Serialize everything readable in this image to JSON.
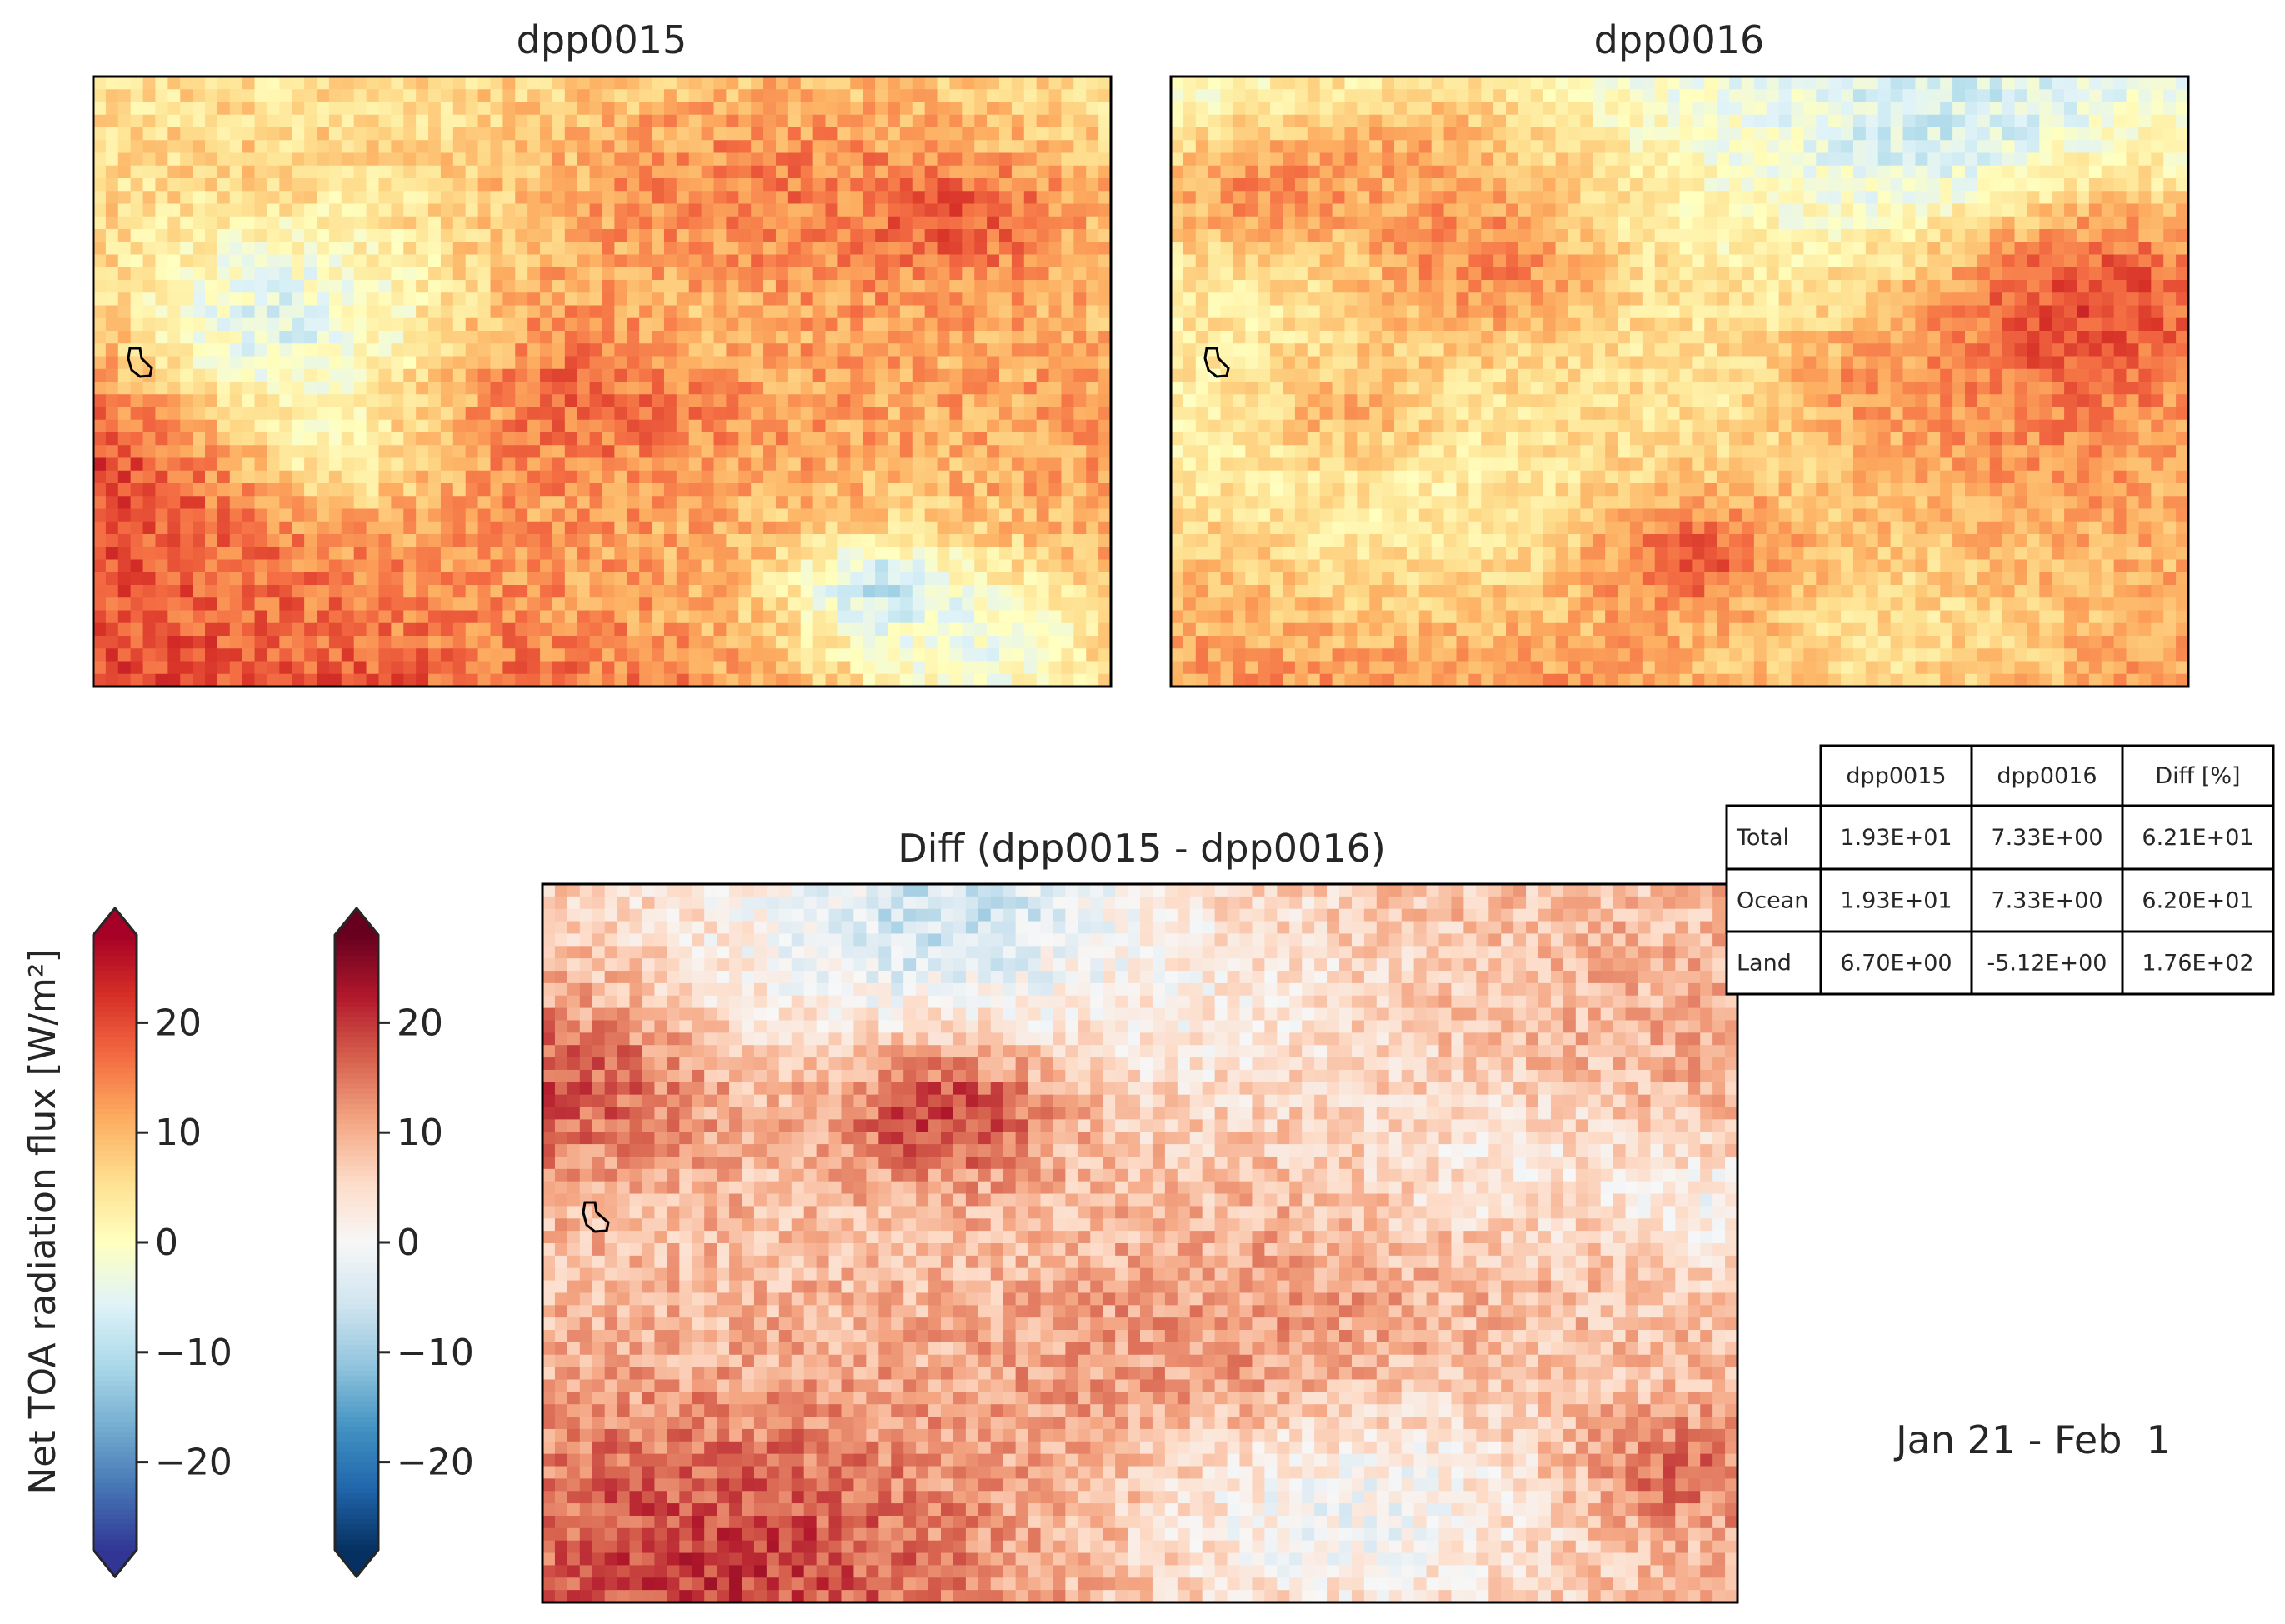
{
  "figure": {
    "date_range": "Jan 21 - Feb  1"
  },
  "chart_data": [
    {
      "type": "heatmap",
      "title": "dpp0015",
      "colormap": "RdYlBu_r",
      "value_range": [
        -27,
        27
      ],
      "grid_size": [
        48,
        82
      ],
      "pattern": "mostly warm values, dark red in southern half, scattered pale yellow patches in the north-center",
      "base_level": 12,
      "north_south_gradient": 14,
      "noise_amplitude": 9,
      "seed": 15,
      "island_outline": true
    },
    {
      "type": "heatmap",
      "title": "dpp0016",
      "colormap": "RdYlBu_r",
      "value_range": [
        -27,
        27
      ],
      "grid_size": [
        48,
        82
      ],
      "pattern": "pale yellow and light blue north, orange-red south, dark blue patch left of center",
      "base_level": 5,
      "north_south_gradient": 16,
      "noise_amplitude": 8,
      "seed": 16,
      "island_outline": true
    },
    {
      "type": "heatmap",
      "title": "Diff (dpp0015 - dpp0016)",
      "colormap": "RdBu_r",
      "value_range": [
        -27,
        27
      ],
      "grid_size": [
        58,
        96
      ],
      "pattern": "mostly pale to medium red, dark red patch center-left and center-right, light blue specks",
      "base_level": 8,
      "north_south_gradient": 2,
      "noise_amplitude": 9,
      "seed": 42,
      "island_outline": true
    },
    {
      "type": "colorbar",
      "ylabel": "Net TOA radiation flux [W/m²]",
      "ticks": [
        -20,
        -10,
        0,
        10,
        20
      ],
      "tick_labels": [
        "−20",
        "−10",
        "0",
        "10",
        "20"
      ],
      "range": [
        -28,
        28
      ],
      "colormap": "RdYlBu_r",
      "extend": "both"
    },
    {
      "type": "colorbar",
      "ticks": [
        -20,
        -10,
        0,
        10,
        20
      ],
      "tick_labels": [
        "−20",
        "−10",
        "0",
        "10",
        "20"
      ],
      "range": [
        -28,
        28
      ],
      "colormap": "RdBu_r",
      "extend": "both"
    },
    {
      "type": "table",
      "columns": [
        "",
        "dpp0015",
        "dpp0016",
        "Diff [%]"
      ],
      "rows": [
        [
          "Total",
          "1.93E+01",
          "7.33E+00",
          "6.21E+01"
        ],
        [
          "Ocean",
          "1.93E+01",
          "7.33E+00",
          "6.20E+01"
        ],
        [
          "Land",
          "6.70E+00",
          "-5.12E+00",
          "1.76E+02"
        ]
      ]
    }
  ],
  "colormaps": {
    "RdYlBu_r": [
      "#313695",
      "#4575b4",
      "#74add1",
      "#abd9e9",
      "#e0f3f8",
      "#ffffbf",
      "#fee090",
      "#fdae61",
      "#f46d43",
      "#d73027",
      "#a50026"
    ],
    "RdBu_r": [
      "#053061",
      "#2166ac",
      "#4393c3",
      "#92c5de",
      "#d1e5f0",
      "#f7f7f7",
      "#fddbc7",
      "#f4a582",
      "#d6604d",
      "#b2182b",
      "#67001f"
    ]
  }
}
